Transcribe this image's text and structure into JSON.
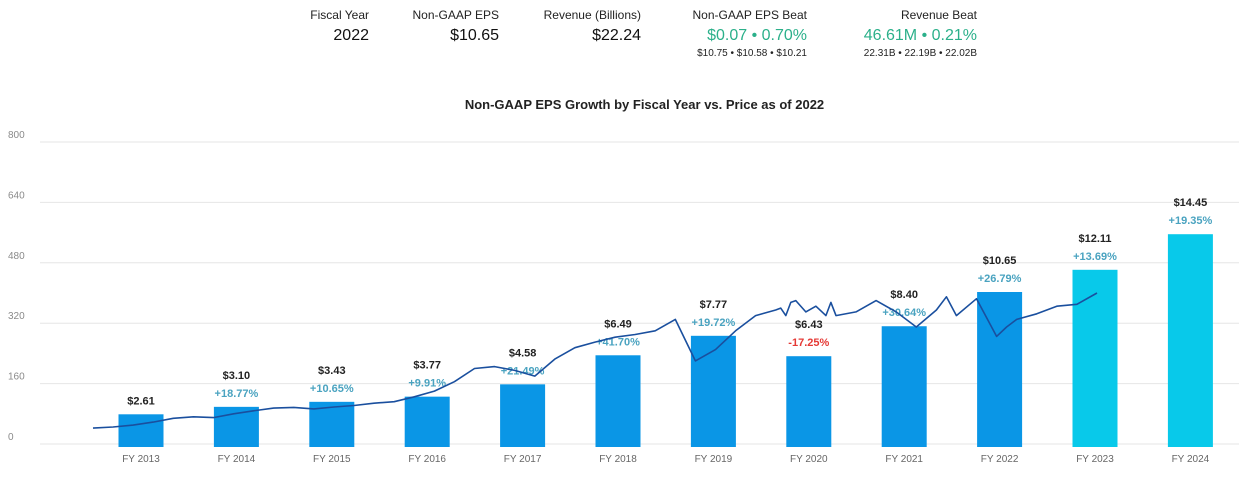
{
  "stats": {
    "fiscal_year": {
      "label": "Fiscal Year",
      "value": "2022"
    },
    "eps": {
      "label": "Non-GAAP EPS",
      "value": "$10.65"
    },
    "revenue": {
      "label": "Revenue (Billions)",
      "value": "$22.24"
    },
    "eps_beat": {
      "label": "Non-GAAP EPS Beat",
      "value": "$0.07 • 0.70%",
      "sub": "$10.75 • $10.58 • $10.21"
    },
    "revenue_beat": {
      "label": "Revenue Beat",
      "value": "46.61M • 0.21%",
      "sub": "22.31B • 22.19B • 22.02B"
    }
  },
  "colors": {
    "bar_actual": "#0a96e6",
    "bar_estimate": "#08c9ea",
    "price_line": "#1a4f9e",
    "pct_positive": "#4aa3c0",
    "pct_negative": "#e53935",
    "beat_green": "#2bb08a",
    "grid": "#e6e6e6"
  },
  "chart_data": {
    "type": "bar",
    "title": "Non-GAAP EPS Growth by Fiscal Year vs. Price as of 2022",
    "ylim": [
      0,
      800
    ],
    "yticks": [
      0,
      160,
      320,
      480,
      640,
      800
    ],
    "grid": true,
    "categories": [
      "FY 2013",
      "FY 2014",
      "FY 2015",
      "FY 2016",
      "FY 2017",
      "FY 2018",
      "FY 2019",
      "FY 2020",
      "FY 2021",
      "FY 2022",
      "FY 2023",
      "FY 2024"
    ],
    "eps": [
      2.61,
      3.1,
      3.43,
      3.77,
      4.58,
      6.49,
      7.77,
      6.43,
      8.4,
      10.65,
      12.11,
      14.45
    ],
    "value_labels": [
      "$2.61",
      "$3.10",
      "$3.43",
      "$3.77",
      "$4.58",
      "$6.49",
      "$7.77",
      "$6.43",
      "$8.40",
      "$10.65",
      "$12.11",
      "$14.45"
    ],
    "growth_labels": [
      "",
      "+18.77%",
      "+10.65%",
      "+9.91%",
      "+21.49%",
      "+41.70%",
      "+19.72%",
      "-17.25%",
      "+30.64%",
      "+26.79%",
      "+13.69%",
      "+19.35%"
    ],
    "estimate": [
      false,
      false,
      false,
      false,
      false,
      false,
      false,
      false,
      false,
      false,
      true,
      true
    ],
    "price_series": {
      "x": [
        0.0,
        0.2,
        0.4,
        0.6,
        0.8,
        1.0,
        1.2,
        1.4,
        1.6,
        1.8,
        2.0,
        2.2,
        2.4,
        2.6,
        2.8,
        3.0,
        3.2,
        3.4,
        3.6,
        3.8,
        4.0,
        4.2,
        4.4,
        4.6,
        4.8,
        5.0,
        5.2,
        5.4,
        5.6,
        5.8,
        6.0,
        6.2,
        6.4,
        6.6,
        6.8,
        6.85,
        6.9,
        6.95,
        7.0,
        7.1,
        7.2,
        7.3,
        7.35,
        7.4,
        7.6,
        7.8,
        8.0,
        8.2,
        8.4,
        8.5,
        8.6,
        8.8,
        9.0,
        9.1,
        9.2,
        9.4,
        9.6,
        9.8,
        10.0
      ],
      "y": [
        42,
        45,
        50,
        58,
        68,
        72,
        70,
        80,
        88,
        95,
        97,
        93,
        98,
        102,
        108,
        112,
        125,
        140,
        165,
        200,
        205,
        195,
        180,
        225,
        255,
        270,
        283,
        290,
        300,
        330,
        220,
        250,
        300,
        340,
        355,
        360,
        340,
        375,
        380,
        350,
        365,
        340,
        375,
        340,
        350,
        380,
        350,
        310,
        355,
        390,
        340,
        385,
        285,
        310,
        330,
        345,
        365,
        370,
        400
      ]
    }
  }
}
